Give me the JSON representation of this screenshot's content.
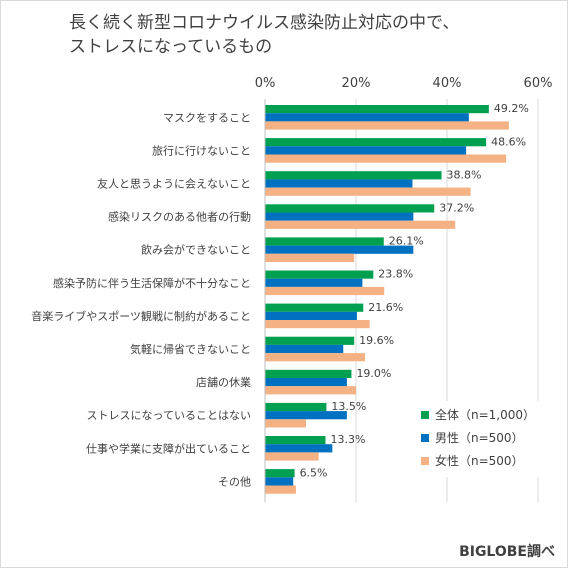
{
  "chart_data": {
    "type": "bar",
    "orientation": "horizontal",
    "title_line1": "長く続く新型コロナウイルス感染防止対応の中で、",
    "title_line2": "ストレスになっているもの",
    "xlim": [
      0,
      60
    ],
    "x_ticks": [
      "0%",
      "20%",
      "40%",
      "60%"
    ],
    "grid": true,
    "legend_position": "bottom-right",
    "categories": [
      "マスクをすること",
      "旅行に行けないこと",
      "友人と思うように会えないこと",
      "感染リスクのある他者の行動",
      "飲み会ができないこと",
      "感染予防に伴う生活保障が不十分なこと",
      "音楽ライブやスポーツ観戦に制約があること",
      "気軽に帰省できないこと",
      "店舗の休業",
      "ストレスになっていることはない",
      "仕事や学業に支障が出ていること",
      "その他"
    ],
    "series": [
      {
        "name": "全体（n=1,000）",
        "color": "#00a050",
        "values": [
          49.2,
          48.6,
          38.8,
          37.2,
          26.1,
          23.8,
          21.6,
          19.6,
          19.0,
          13.5,
          13.3,
          6.5
        ],
        "labels": [
          "49.2%",
          "48.6%",
          "38.8%",
          "37.2%",
          "26.1%",
          "23.8%",
          "21.6%",
          "19.6%",
          "19.0%",
          "13.5%",
          "13.3%",
          "6.5%"
        ]
      },
      {
        "name": "男性（n=500）",
        "color": "#0070c0",
        "values": [
          44.8,
          44.2,
          32.4,
          32.6,
          32.6,
          21.4,
          20.2,
          17.2,
          18.0,
          18.0,
          14.8,
          6.2
        ]
      },
      {
        "name": "女性（n=500）",
        "color": "#f4b183",
        "values": [
          53.6,
          53.0,
          45.2,
          41.8,
          19.6,
          26.2,
          23.0,
          22.0,
          20.0,
          9.0,
          11.8,
          6.8
        ]
      }
    ]
  },
  "source": "BIGLOBE調べ"
}
